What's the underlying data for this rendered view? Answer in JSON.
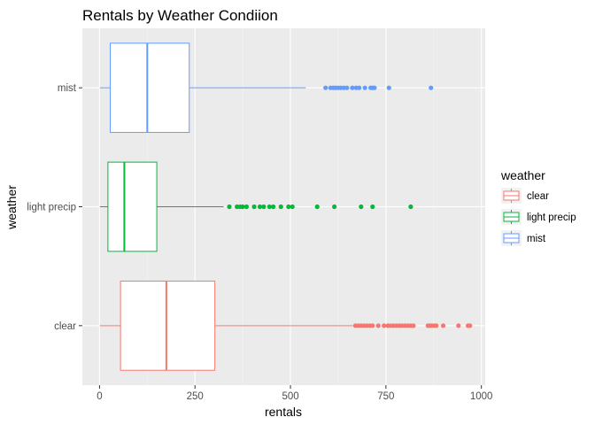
{
  "chart_data": {
    "type": "boxplot",
    "orientation": "horizontal",
    "title": "Rentals by Weather Condiion",
    "xlabel": "rentals",
    "ylabel": "weather",
    "xlim": [
      -45,
      1010
    ],
    "x_ticks": [
      0,
      250,
      500,
      750,
      1000
    ],
    "x_tick_labels": [
      "0",
      "250",
      "500",
      "750",
      "1000"
    ],
    "grid": true,
    "panel_background": "#ebebeb",
    "legend": {
      "title": "weather",
      "position": "right",
      "entries": [
        "clear",
        "light precip",
        "mist"
      ]
    },
    "series": [
      {
        "name": "clear",
        "color": "#f8766d",
        "min": 1,
        "q1": 55,
        "median": 175,
        "q3": 302,
        "max": 663,
        "outliers": [
          670,
          678,
          685,
          692,
          700,
          708,
          715,
          730,
          745,
          755,
          762,
          770,
          778,
          785,
          792,
          800,
          808,
          815,
          822,
          860,
          865,
          870,
          876,
          882,
          900,
          940,
          965,
          970
        ]
      },
      {
        "name": "light precip",
        "color": "#00ba38",
        "min": 1,
        "q1": 22,
        "median": 65,
        "q3": 150,
        "max": 325,
        "outliers": [
          340,
          360,
          368,
          375,
          385,
          405,
          420,
          430,
          445,
          455,
          475,
          495,
          505,
          570,
          615,
          685,
          715,
          815
        ]
      },
      {
        "name": "mist",
        "color": "#619cff",
        "min": 1,
        "q1": 28,
        "median": 125,
        "q3": 235,
        "max": 540,
        "outliers": [
          592,
          605,
          612,
          618,
          625,
          632,
          640,
          648,
          662,
          672,
          680,
          695,
          710,
          715,
          720,
          758,
          868
        ]
      }
    ]
  }
}
